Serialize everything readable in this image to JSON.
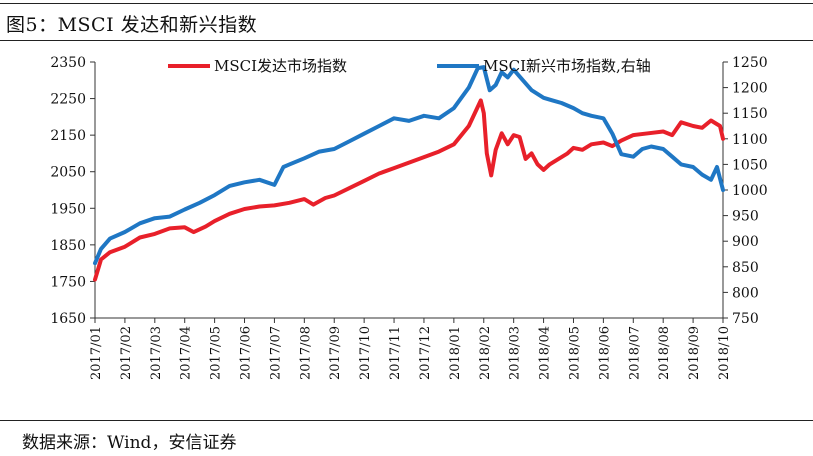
{
  "title": "图5：MSCI 发达和新兴指数",
  "source": "数据来源：Wind，安信证券",
  "chart_data": {
    "type": "line",
    "x": [
      "2017/01",
      "2017/02",
      "2017/03",
      "2017/04",
      "2017/05",
      "2017/06",
      "2017/07",
      "2017/08",
      "2017/09",
      "2017/10",
      "2017/11",
      "2017/12",
      "2018/01",
      "2018/02",
      "2018/03",
      "2018/04",
      "2018/05",
      "2018/06",
      "2018/07",
      "2018/08",
      "2018/09",
      "2018/10"
    ],
    "y_left": {
      "min": 1650,
      "max": 2350,
      "ticks": [
        1650,
        1750,
        1850,
        1950,
        2050,
        2150,
        2250,
        2350
      ]
    },
    "y_right": {
      "min": 750,
      "max": 1250,
      "ticks": [
        750,
        800,
        850,
        900,
        950,
        1000,
        1050,
        1100,
        1150,
        1200,
        1250
      ]
    },
    "legend_position": "top",
    "grid": false,
    "series": [
      {
        "name": "MSCI发达市场指数",
        "axis": "left",
        "color": "#e8202a",
        "points": [
          [
            0,
            1755
          ],
          [
            0.2,
            1810
          ],
          [
            0.5,
            1830
          ],
          [
            1,
            1845
          ],
          [
            1.5,
            1870
          ],
          [
            2,
            1880
          ],
          [
            2.5,
            1895
          ],
          [
            3,
            1898
          ],
          [
            3.3,
            1885
          ],
          [
            3.7,
            1900
          ],
          [
            4,
            1915
          ],
          [
            4.5,
            1935
          ],
          [
            5,
            1948
          ],
          [
            5.5,
            1955
          ],
          [
            6,
            1958
          ],
          [
            6.5,
            1965
          ],
          [
            7,
            1975
          ],
          [
            7.3,
            1960
          ],
          [
            7.7,
            1978
          ],
          [
            8,
            1985
          ],
          [
            8.5,
            2005
          ],
          [
            9,
            2025
          ],
          [
            9.5,
            2045
          ],
          [
            10,
            2060
          ],
          [
            10.5,
            2075
          ],
          [
            11,
            2090
          ],
          [
            11.5,
            2105
          ],
          [
            12,
            2125
          ],
          [
            12.5,
            2175
          ],
          [
            12.9,
            2245
          ],
          [
            13,
            2210
          ],
          [
            13.1,
            2100
          ],
          [
            13.25,
            2040
          ],
          [
            13.4,
            2110
          ],
          [
            13.6,
            2155
          ],
          [
            13.8,
            2125
          ],
          [
            14,
            2150
          ],
          [
            14.2,
            2145
          ],
          [
            14.4,
            2085
          ],
          [
            14.6,
            2100
          ],
          [
            14.8,
            2070
          ],
          [
            15,
            2055
          ],
          [
            15.2,
            2070
          ],
          [
            15.5,
            2085
          ],
          [
            15.8,
            2100
          ],
          [
            16,
            2115
          ],
          [
            16.3,
            2110
          ],
          [
            16.6,
            2125
          ],
          [
            17,
            2130
          ],
          [
            17.3,
            2120
          ],
          [
            17.6,
            2135
          ],
          [
            18,
            2150
          ],
          [
            18.5,
            2155
          ],
          [
            19,
            2160
          ],
          [
            19.3,
            2150
          ],
          [
            19.6,
            2185
          ],
          [
            20,
            2175
          ],
          [
            20.3,
            2170
          ],
          [
            20.6,
            2190
          ],
          [
            20.9,
            2175
          ],
          [
            21,
            2140
          ]
        ]
      },
      {
        "name": "MSCI新兴市场指数,右轴",
        "axis": "right",
        "color": "#1f77c4",
        "points": [
          [
            0,
            857
          ],
          [
            0.2,
            885
          ],
          [
            0.5,
            905
          ],
          [
            1,
            918
          ],
          [
            1.5,
            935
          ],
          [
            2,
            945
          ],
          [
            2.5,
            948
          ],
          [
            3,
            962
          ],
          [
            3.5,
            975
          ],
          [
            4,
            990
          ],
          [
            4.5,
            1008
          ],
          [
            5,
            1015
          ],
          [
            5.5,
            1020
          ],
          [
            6,
            1010
          ],
          [
            6.3,
            1045
          ],
          [
            6.5,
            1050
          ],
          [
            7,
            1062
          ],
          [
            7.5,
            1075
          ],
          [
            8,
            1080
          ],
          [
            8.5,
            1095
          ],
          [
            9,
            1110
          ],
          [
            9.5,
            1125
          ],
          [
            10,
            1140
          ],
          [
            10.5,
            1135
          ],
          [
            11,
            1145
          ],
          [
            11.5,
            1140
          ],
          [
            12,
            1160
          ],
          [
            12.5,
            1200
          ],
          [
            12.8,
            1238
          ],
          [
            13,
            1240
          ],
          [
            13.2,
            1195
          ],
          [
            13.4,
            1205
          ],
          [
            13.6,
            1230
          ],
          [
            13.8,
            1220
          ],
          [
            14,
            1235
          ],
          [
            14.3,
            1215
          ],
          [
            14.6,
            1195
          ],
          [
            15,
            1180
          ],
          [
            15.3,
            1175
          ],
          [
            15.6,
            1170
          ],
          [
            16,
            1160
          ],
          [
            16.3,
            1150
          ],
          [
            16.6,
            1145
          ],
          [
            17,
            1140
          ],
          [
            17.3,
            1110
          ],
          [
            17.6,
            1070
          ],
          [
            18,
            1065
          ],
          [
            18.3,
            1080
          ],
          [
            18.6,
            1085
          ],
          [
            19,
            1080
          ],
          [
            19.3,
            1065
          ],
          [
            19.6,
            1050
          ],
          [
            20,
            1045
          ],
          [
            20.3,
            1030
          ],
          [
            20.6,
            1020
          ],
          [
            20.8,
            1045
          ],
          [
            21,
            1000
          ]
        ]
      }
    ]
  }
}
